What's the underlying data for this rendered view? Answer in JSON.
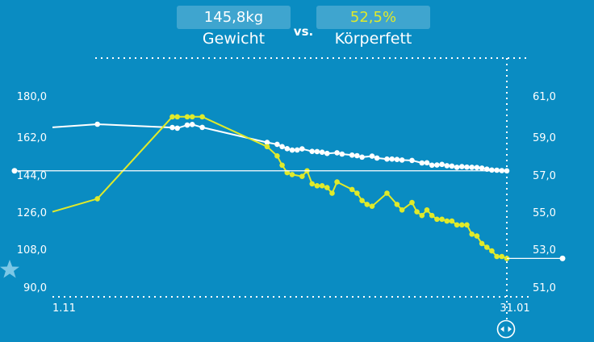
{
  "header": {
    "weight_value": "145,8kg",
    "weight_label": "Gewicht",
    "vs": "vs.",
    "fat_value": "52,5%",
    "fat_label": "Körperfett"
  },
  "colors": {
    "background": "#0a8cc2",
    "weight_line": "#ffffff",
    "fat_line": "#e0ea2a",
    "accent_star": "#7cc7e6"
  },
  "icons": {
    "favorite": "star-icon",
    "drag": "left-right-arrows-icon"
  },
  "chart_data": {
    "type": "line",
    "x_tick_labels": [
      "1.11",
      "31.01"
    ],
    "y_left_ticks": [
      "180,0",
      "162,0",
      "144,0",
      "126,0",
      "108,0",
      "90,0"
    ],
    "y_right_ticks": [
      "61,0",
      "59,0",
      "57,0",
      "55,0",
      "53,0",
      "51,0"
    ],
    "ylim_left": [
      90,
      180
    ],
    "ylim_right": [
      51,
      61
    ],
    "x_range_days": [
      0,
      91
    ],
    "current_weight_marker": 145.8,
    "current_fat_marker": 52.5,
    "series": [
      {
        "axis": "left",
        "values": [
          [
            0,
            166.8
          ],
          [
            9,
            168.3
          ],
          [
            24,
            166.7
          ],
          [
            25,
            166.4
          ],
          [
            27,
            167.9
          ],
          [
            28,
            168.2
          ],
          [
            30,
            166.8
          ],
          [
            43,
            159.5
          ],
          [
            45,
            158.6
          ],
          [
            46,
            157.5
          ],
          [
            47,
            156.5
          ],
          [
            48,
            155.8
          ],
          [
            49,
            155.9
          ],
          [
            50,
            156.4
          ],
          [
            52,
            155.2
          ],
          [
            53,
            155.1
          ],
          [
            54,
            154.8
          ],
          [
            55,
            154.2
          ],
          [
            57,
            154.5
          ],
          [
            58,
            153.9
          ],
          [
            60,
            153.4
          ],
          [
            61,
            153.1
          ],
          [
            62,
            152.4
          ],
          [
            64,
            152.9
          ],
          [
            65,
            152.0
          ],
          [
            67,
            151.5
          ],
          [
            68,
            151.5
          ],
          [
            69,
            151.3
          ],
          [
            70,
            151.0
          ],
          [
            72,
            150.8
          ],
          [
            74,
            149.6
          ],
          [
            75,
            149.7
          ],
          [
            76,
            148.5
          ],
          [
            77,
            148.6
          ],
          [
            78,
            148.9
          ],
          [
            79,
            148.3
          ],
          [
            80,
            148.1
          ],
          [
            81,
            147.5
          ],
          [
            82,
            147.8
          ],
          [
            83,
            147.6
          ],
          [
            84,
            147.5
          ],
          [
            85,
            147.4
          ],
          [
            86,
            147.1
          ],
          [
            87,
            146.6
          ],
          [
            88,
            146.2
          ],
          [
            89,
            146.1
          ],
          [
            90,
            145.9
          ],
          [
            91,
            145.8
          ]
        ]
      },
      {
        "axis": "right",
        "values": [
          [
            0,
            55.0
          ],
          [
            9,
            55.7
          ],
          [
            24,
            60.1
          ],
          [
            25,
            60.1
          ],
          [
            27,
            60.1
          ],
          [
            28,
            60.1
          ],
          [
            30,
            60.1
          ],
          [
            43,
            58.5
          ],
          [
            45,
            58.0
          ],
          [
            46,
            57.5
          ],
          [
            47,
            57.1
          ],
          [
            48,
            57.0
          ],
          [
            50,
            56.9
          ],
          [
            51,
            57.2
          ],
          [
            52,
            56.5
          ],
          [
            53,
            56.4
          ],
          [
            54,
            56.4
          ],
          [
            55,
            56.3
          ],
          [
            56,
            56.0
          ],
          [
            57,
            56.6
          ],
          [
            60,
            56.2
          ],
          [
            61,
            56.0
          ],
          [
            62,
            55.6
          ],
          [
            63,
            55.4
          ],
          [
            64,
            55.3
          ],
          [
            67,
            56.0
          ],
          [
            69,
            55.4
          ],
          [
            70,
            55.1
          ],
          [
            72,
            55.5
          ],
          [
            73,
            55.0
          ],
          [
            74,
            54.8
          ],
          [
            75,
            55.1
          ],
          [
            76,
            54.8
          ],
          [
            77,
            54.6
          ],
          [
            78,
            54.6
          ],
          [
            79,
            54.5
          ],
          [
            80,
            54.5
          ],
          [
            81,
            54.3
          ],
          [
            82,
            54.3
          ],
          [
            83,
            54.3
          ],
          [
            84,
            53.8
          ],
          [
            85,
            53.7
          ],
          [
            86,
            53.3
          ],
          [
            87,
            53.1
          ],
          [
            88,
            52.9
          ],
          [
            89,
            52.6
          ],
          [
            90,
            52.6
          ],
          [
            91,
            52.5
          ]
        ]
      }
    ]
  }
}
